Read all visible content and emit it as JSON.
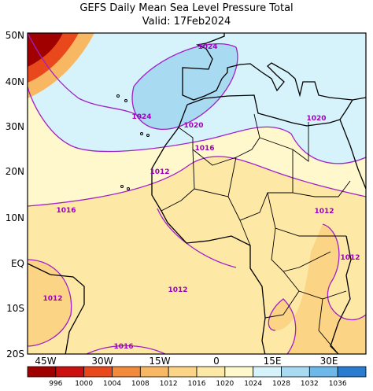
{
  "header": {
    "title": "GEFS Daily Mean Sea Level Pressure Total",
    "subtitle": "Valid: 17Feb2024"
  },
  "axes": {
    "lat_labels": [
      "50N",
      "40N",
      "30N",
      "20N",
      "10N",
      "EQ",
      "10S",
      "20S"
    ],
    "lon_labels": [
      "45W",
      "30W",
      "15W",
      "0",
      "15E",
      "30E"
    ]
  },
  "contour_labels": [
    "1024",
    "1024",
    "1020",
    "1020",
    "1016",
    "1016",
    "1016",
    "1012",
    "1012",
    "1012",
    "1012",
    "1012"
  ],
  "colorbar": {
    "ticks": [
      996,
      1000,
      1004,
      1008,
      1012,
      1016,
      1020,
      1024,
      1028,
      1032,
      1036
    ],
    "colors": [
      "#a00000",
      "#cc1010",
      "#e8481c",
      "#f28a3c",
      "#f8b762",
      "#fbd486",
      "#fde8a6",
      "#fff8cc",
      "#d6f2fa",
      "#a8daf2",
      "#6cb8e8",
      "#2a7cd0"
    ]
  }
}
